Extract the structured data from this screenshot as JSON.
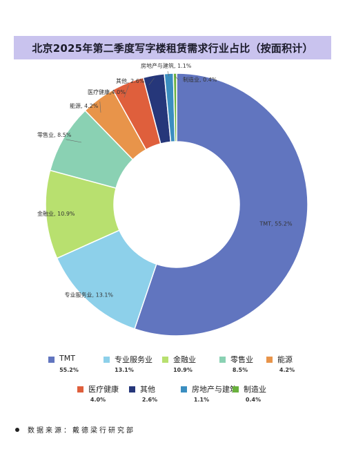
{
  "title": "北京2025年第二季度写字楼租赁需求行业占比（按面积计）",
  "source": "数据来源：戴德梁行研究部",
  "chart_data": {
    "type": "pie",
    "style": "donut",
    "categories": [
      "TMT",
      "专业服务业",
      "金融业",
      "零售业",
      "能源",
      "医疗健康",
      "其他",
      "房地产与建筑",
      "制造业"
    ],
    "values": [
      55.2,
      13.1,
      10.9,
      8.5,
      4.2,
      4.0,
      2.6,
      1.1,
      0.4
    ],
    "value_labels": [
      "55.2%",
      "13.1%",
      "10.9%",
      "8.5%",
      "4.2%",
      "4.0%",
      "2.6%",
      "1.1%",
      "0.4%"
    ],
    "slice_labels": [
      "TMT, 55.2%",
      "专业服务业, 13.1%",
      "金融业, 10.9%",
      "零售业, 8.5%",
      "能源, 4.2%",
      "医疗健康,4.0%",
      "其他, 2.6%",
      "房地产与建筑, 1.1%",
      "制造业, 0.4%"
    ],
    "colors": [
      "#6175bf",
      "#8dd0ea",
      "#b8e06f",
      "#8ad1b3",
      "#e8944a",
      "#df5f3c",
      "#26377a",
      "#3b8ec0",
      "#6ab13e"
    ],
    "legend_position": "bottom"
  }
}
